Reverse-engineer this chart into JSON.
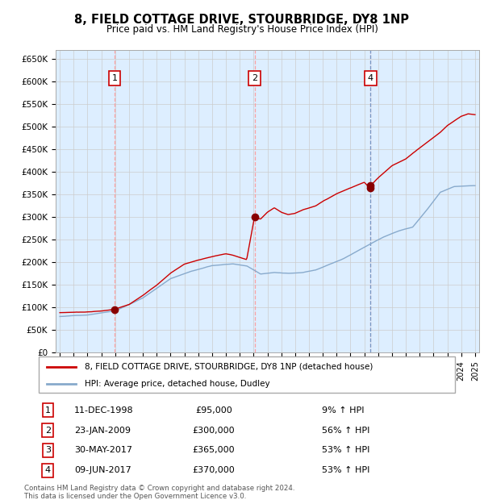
{
  "title": "8, FIELD COTTAGE DRIVE, STOURBRIDGE, DY8 1NP",
  "subtitle": "Price paid vs. HM Land Registry's House Price Index (HPI)",
  "legend_line1": "8, FIELD COTTAGE DRIVE, STOURBRIDGE, DY8 1NP (detached house)",
  "legend_line2": "HPI: Average price, detached house, Dudley",
  "footer_line1": "Contains HM Land Registry data © Crown copyright and database right 2024.",
  "footer_line2": "This data is licensed under the Open Government Licence v3.0.",
  "purchases": [
    {
      "num": 1,
      "date": "11-DEC-1998",
      "price": 95000,
      "hpi_pct": "9% ↑ HPI",
      "year": 1998.95,
      "vline_color": "#ff9999",
      "vline_style": "--"
    },
    {
      "num": 2,
      "date": "23-JAN-2009",
      "price": 300000,
      "hpi_pct": "56% ↑ HPI",
      "year": 2009.07,
      "vline_color": "#ff9999",
      "vline_style": "--"
    },
    {
      "num": 3,
      "date": "30-MAY-2017",
      "price": 365000,
      "hpi_pct": "53% ↑ HPI",
      "year": 2017.41,
      "vline_color": "#ff9999",
      "vline_style": "--"
    },
    {
      "num": 4,
      "date": "09-JUN-2017",
      "price": 370000,
      "hpi_pct": "53% ↑ HPI",
      "year": 2017.44,
      "vline_color": "#6699cc",
      "vline_style": "--"
    }
  ],
  "red_line_color": "#cc0000",
  "blue_line_color": "#88aacc",
  "bg_fill_color": "#ddeeff",
  "grid_color": "#cccccc",
  "purchase_marker_color": "#880000",
  "box_edge_color": "#cc0000",
  "ylim": [
    0,
    670000
  ],
  "yticks": [
    0,
    50000,
    100000,
    150000,
    200000,
    250000,
    300000,
    350000,
    400000,
    450000,
    500000,
    550000,
    600000,
    650000
  ],
  "xlim_start": 1994.7,
  "xlim_end": 2025.3
}
